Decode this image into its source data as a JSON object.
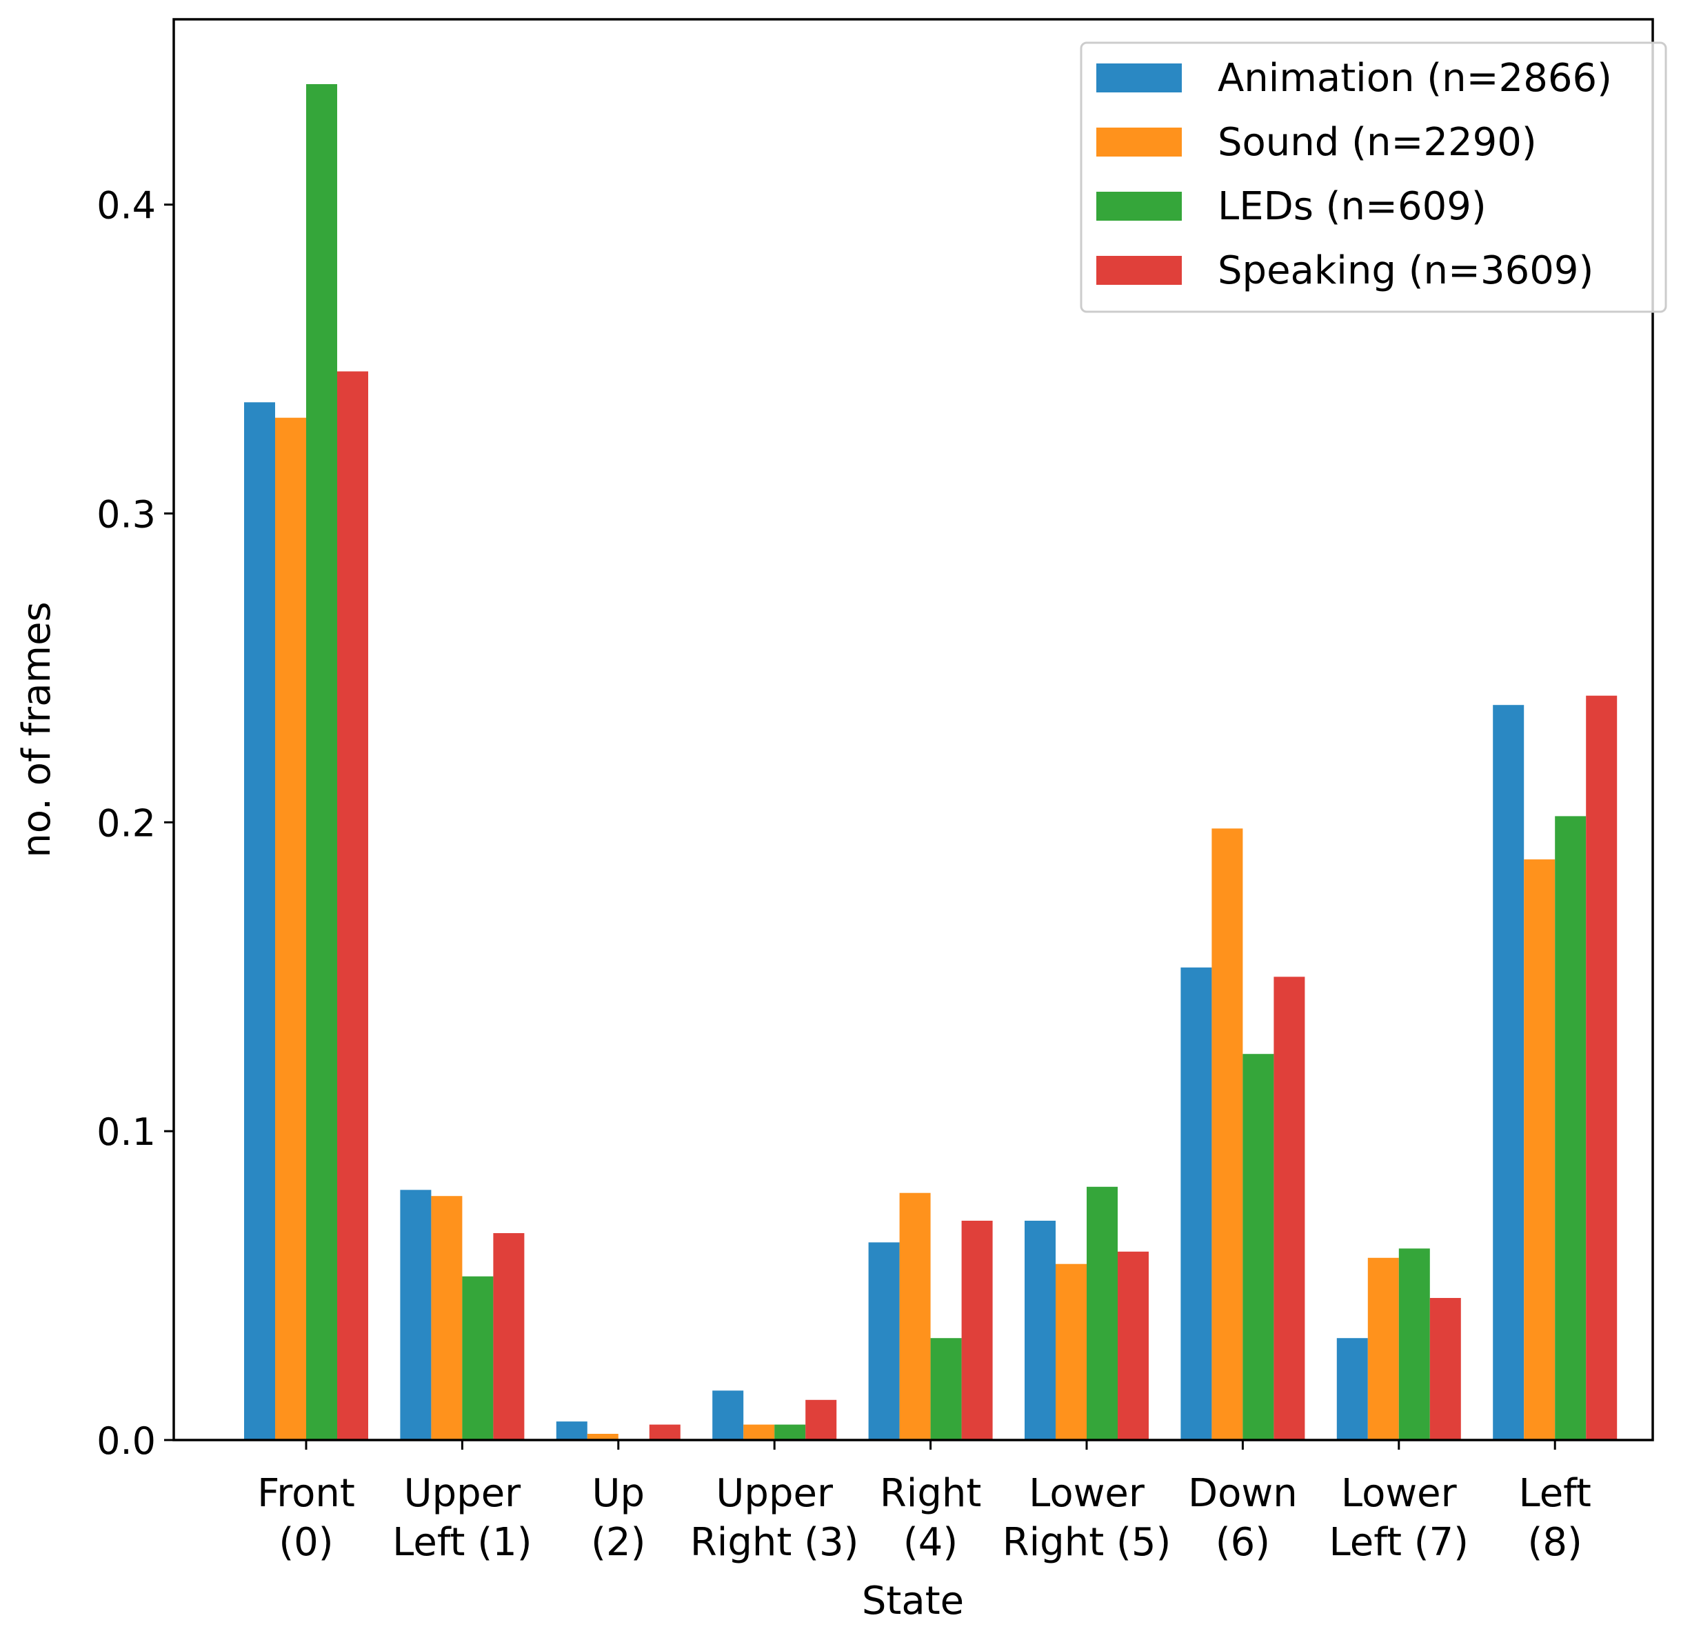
{
  "chart_data": {
    "type": "bar",
    "title": "",
    "xlabel": "State",
    "ylabel": "no. of frames",
    "ylim": [
      0,
      0.46
    ],
    "yticks": [
      0.0,
      0.1,
      0.2,
      0.3,
      0.4
    ],
    "ytick_labels": [
      "0.0",
      "0.1",
      "0.2",
      "0.3",
      "0.4"
    ],
    "grid": false,
    "legend_position": "top-right",
    "categories": [
      [
        "Front",
        "(0)"
      ],
      [
        "Upper",
        "Left (1)"
      ],
      [
        "Up",
        "(2)"
      ],
      [
        "Upper",
        "Right (3)"
      ],
      [
        "Right",
        "(4)"
      ],
      [
        "Lower",
        "Right (5)"
      ],
      [
        "Down",
        "(6)"
      ],
      [
        "Lower",
        "Left (7)"
      ],
      [
        "Left",
        "(8)"
      ]
    ],
    "series": [
      {
        "name": "Animation (n=2866)",
        "color": "#2a88c3",
        "values": [
          0.336,
          0.081,
          0.006,
          0.016,
          0.064,
          0.071,
          0.153,
          0.033,
          0.238
        ]
      },
      {
        "name": "Sound (n=2290)",
        "color": "#ff921c",
        "values": [
          0.331,
          0.079,
          0.002,
          0.005,
          0.08,
          0.057,
          0.198,
          0.059,
          0.188
        ]
      },
      {
        "name": "LEDs (n=609)",
        "color": "#35a63a",
        "values": [
          0.439,
          0.053,
          0.0,
          0.005,
          0.033,
          0.082,
          0.125,
          0.062,
          0.202
        ]
      },
      {
        "name": "Speaking (n=3609)",
        "color": "#e0403a",
        "values": [
          0.346,
          0.067,
          0.005,
          0.013,
          0.071,
          0.061,
          0.15,
          0.046,
          0.241
        ]
      }
    ]
  }
}
